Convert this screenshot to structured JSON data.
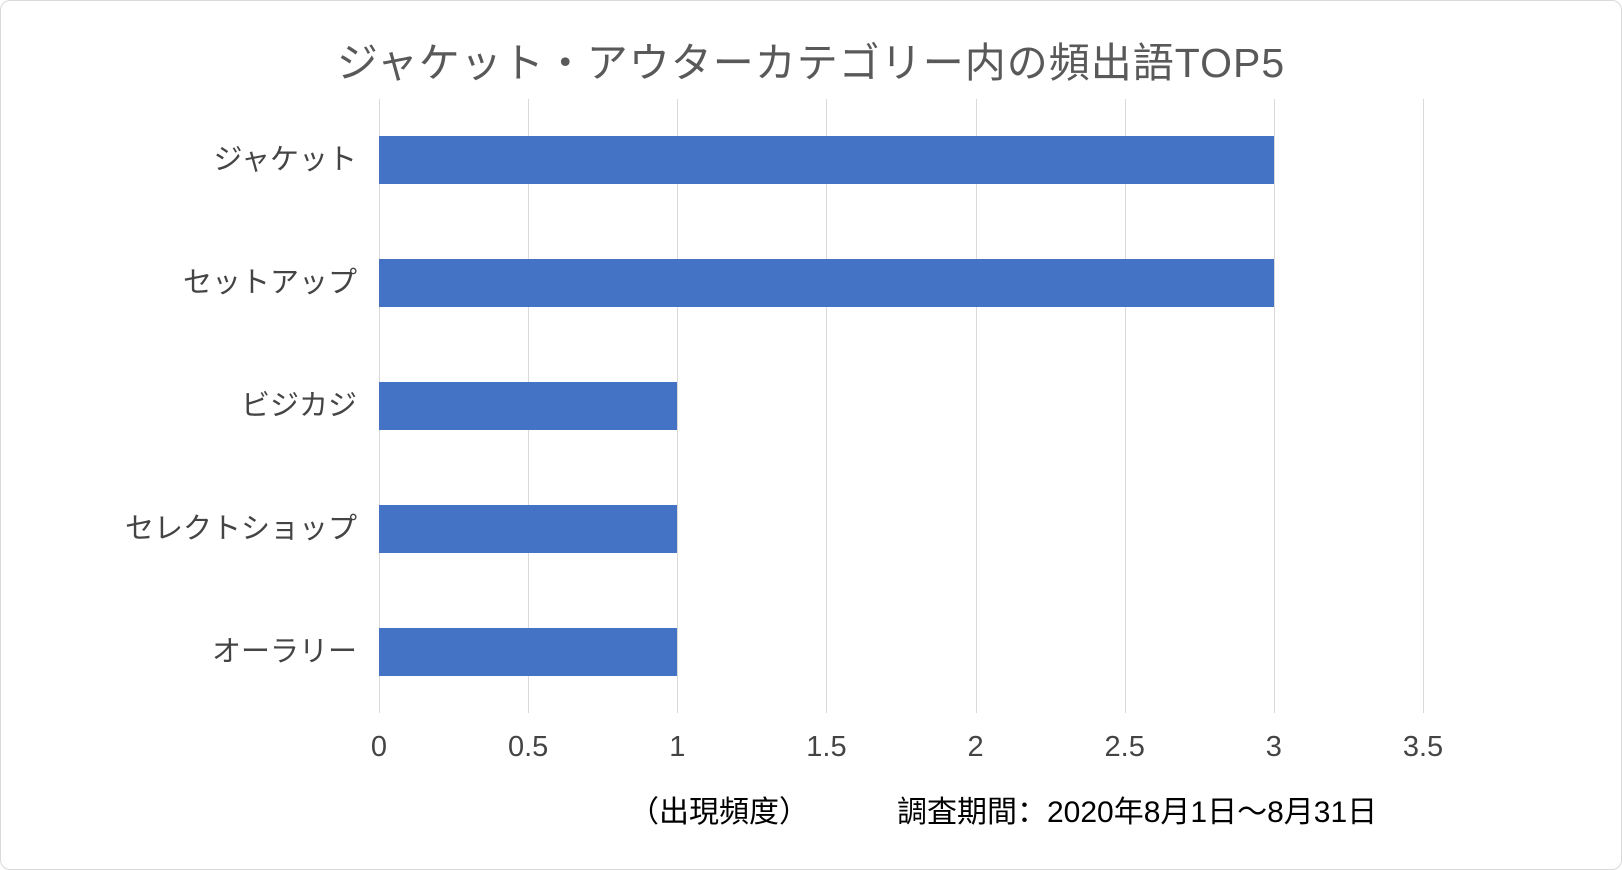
{
  "chart_data": {
    "type": "bar",
    "orientation": "horizontal",
    "title": "ジャケット・アウターカテゴリー内の頻出語TOP5",
    "categories": [
      "ジャケット",
      "セットアップ",
      "ビジカジ",
      "セレクトショップ",
      "オーラリー"
    ],
    "values": [
      3,
      3,
      1,
      1,
      1
    ],
    "x_ticks": [
      0,
      0.5,
      1,
      1.5,
      2,
      2.5,
      3,
      3.5
    ],
    "x_tick_labels": [
      "0",
      "0.5",
      "1",
      "1.5",
      "2",
      "2.5",
      "3",
      "3.5"
    ],
    "xlim": [
      0,
      3.5
    ],
    "xlabel": "",
    "ylabel": "",
    "legend": "none",
    "grid": "vertical",
    "bar_color": "#4472C4",
    "gridline_color": "#D9D9D9",
    "title_color": "#595959"
  },
  "footer": {
    "unit_label": "（出現頻度）",
    "period_label": "調査期間：2020年8月1日〜8月31日"
  }
}
